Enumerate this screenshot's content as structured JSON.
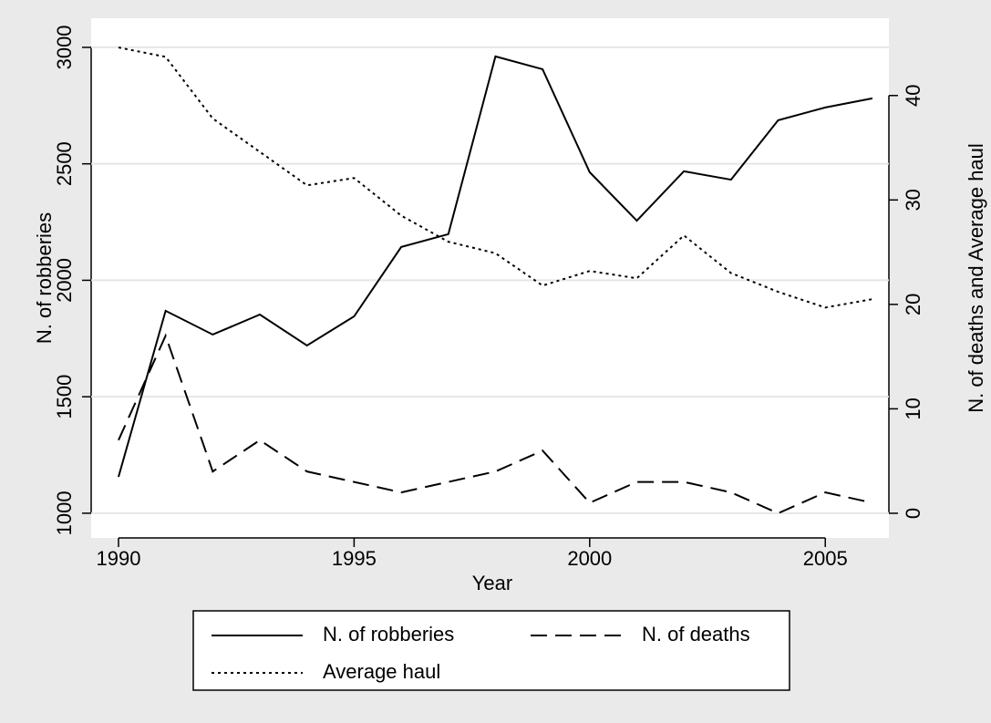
{
  "chart_data": {
    "type": "line",
    "xlabel": "Year",
    "ylabel": "N. of robberies",
    "y2label": "N. of deaths and Average haul",
    "x": [
      1990,
      1991,
      1992,
      1993,
      1994,
      1995,
      1996,
      1997,
      1998,
      1999,
      2000,
      2001,
      2002,
      2003,
      2004,
      2005,
      2006
    ],
    "xlim": [
      1989.42,
      2006.35
    ],
    "xticks": [
      1990,
      1995,
      2000,
      2005
    ],
    "ylim": [
      894,
      3125
    ],
    "yticks": [
      1000,
      1500,
      2000,
      2500,
      3000
    ],
    "y2lim": [
      -2.36,
      47.4
    ],
    "y2ticks": [
      0,
      10,
      20,
      30,
      40
    ],
    "grid": true,
    "legend": "bottom",
    "series": [
      {
        "name": "N. of robberies",
        "color": "#000000",
        "dash": "solid",
        "values": [
          1156,
          1869,
          1767,
          1853,
          1720,
          1845,
          2143,
          2198,
          2961,
          2906,
          2464,
          2256,
          2468,
          2432,
          2687,
          2742,
          2781
        ]
      },
      {
        "name": "N. of deaths",
        "color": "#000000",
        "dash": "dashed",
        "axis": "y2",
        "values": [
          7,
          17,
          4,
          7,
          4,
          3,
          2,
          3,
          4,
          6,
          1,
          3,
          3,
          2,
          0,
          2,
          1
        ]
      },
      {
        "name": "Average haul",
        "color": "#000000",
        "dash": "dotted",
        "axis": "y2",
        "values": [
          44.6,
          43.7,
          37.8,
          34.6,
          31.4,
          32.1,
          28.5,
          26.0,
          24.9,
          21.8,
          23.2,
          22.5,
          26.6,
          23.0,
          21.2,
          19.7,
          20.5
        ]
      }
    ]
  }
}
